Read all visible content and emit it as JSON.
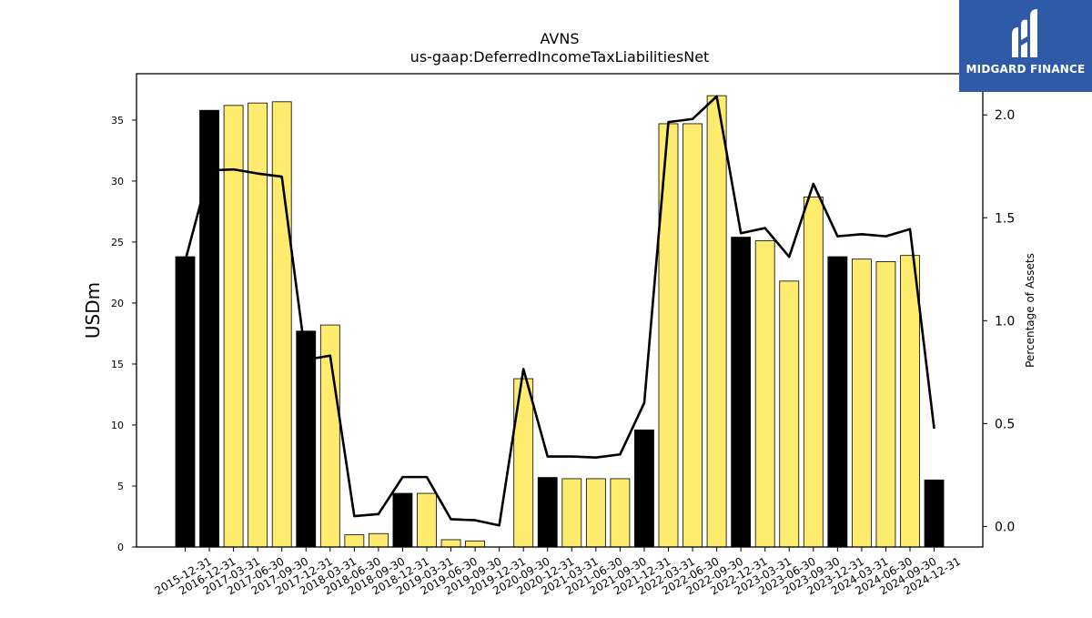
{
  "chart_data": {
    "type": "bar",
    "title": "AVNS",
    "subtitle": "us-gaap:DeferredIncomeTaxLiabilitiesNet",
    "ylabel": "USDm",
    "y2label": "Percentage of Assets",
    "ylim": [
      0,
      38.8
    ],
    "y2lim": [
      -0.1,
      2.2
    ],
    "yticks": [
      0,
      5,
      10,
      15,
      20,
      25,
      30,
      35
    ],
    "y2ticks": [
      0.0,
      0.5,
      1.0,
      1.5,
      2.0
    ],
    "categories": [
      "2015-12-31",
      "2016-12-31",
      "2017-03-31",
      "2017-06-30",
      "2017-09-30",
      "2017-12-31",
      "2018-03-31",
      "2018-06-30",
      "2018-09-30",
      "2018-12-31",
      "2019-03-31",
      "2019-06-30",
      "2019-09-30",
      "2019-12-31",
      "2020-09-30",
      "2020-12-31",
      "2021-03-31",
      "2021-06-30",
      "2021-09-30",
      "2021-12-31",
      "2022-03-31",
      "2022-06-30",
      "2022-09-30",
      "2022-12-31",
      "2023-03-31",
      "2023-06-30",
      "2023-09-30",
      "2023-12-31",
      "2024-03-31",
      "2024-06-30",
      "2024-09-30",
      "2024-12-31"
    ],
    "series": [
      {
        "type": "bar",
        "values": [
          23.8,
          35.8,
          36.2,
          36.4,
          36.5,
          17.7,
          18.2,
          1.0,
          1.1,
          4.4,
          4.4,
          0.6,
          0.5,
          0.0,
          13.8,
          5.7,
          5.6,
          5.6,
          5.6,
          9.6,
          34.7,
          34.7,
          37.0,
          25.4,
          25.1,
          21.8,
          28.7,
          23.8,
          23.6,
          23.4,
          23.9,
          5.5
        ],
        "bar_colors": [
          "#000000",
          "#000000",
          "#ffec6e",
          "#ffec6e",
          "#ffec6e",
          "#000000",
          "#ffec6e",
          "#ffec6e",
          "#ffec6e",
          "#000000",
          "#ffec6e",
          "#ffec6e",
          "#ffec6e",
          "#ffec6e",
          "#ffec6e",
          "#000000",
          "#ffec6e",
          "#ffec6e",
          "#ffec6e",
          "#000000",
          "#ffec6e",
          "#ffec6e",
          "#ffec6e",
          "#000000",
          "#ffec6e",
          "#ffec6e",
          "#ffec6e",
          "#000000",
          "#ffec6e",
          "#ffec6e",
          "#ffec6e",
          "#000000"
        ]
      },
      {
        "type": "line",
        "axis": "right",
        "color": "#000000",
        "values": [
          1.29,
          1.73,
          1.735,
          1.715,
          1.7,
          0.81,
          0.83,
          0.05,
          0.06,
          0.24,
          0.24,
          0.035,
          0.03,
          0.005,
          0.765,
          0.34,
          0.34,
          0.335,
          0.35,
          0.6,
          1.965,
          1.98,
          2.09,
          1.425,
          1.45,
          1.31,
          1.665,
          1.41,
          1.42,
          1.41,
          1.445,
          0.475
        ]
      }
    ],
    "grid": false,
    "legend": "none"
  },
  "logo": {
    "text": "MIDGARD FINANCE",
    "background": "#2f5aa8"
  }
}
